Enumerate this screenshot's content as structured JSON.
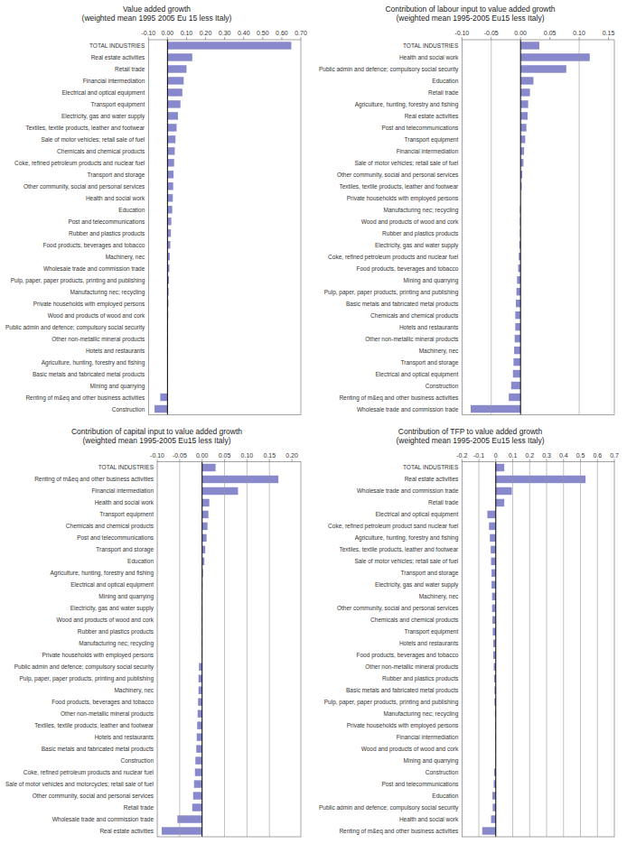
{
  "chart_data": [
    {
      "type": "bar",
      "orientation": "horizontal",
      "grid": false,
      "color": "#8888cc",
      "title": "Value added growth\n(weighted mean 1995 2005 Eu 15 less Italy)",
      "categories": [
        "TOTAL INDUSTRIES",
        "Real estate activities",
        "Retail trade",
        "Financial intermediation",
        "Electrical and optical equipment",
        "Transport equipment",
        "Electricity, gas and water supply",
        "Textiles, textile products, leather and footwear",
        "Sale of motor vehicles; retail sale of fuel",
        "Chemicals and chemical products",
        "Coke, refined petroleum products and nuclear fuel",
        "Transport and storage",
        "Other community, social and personal services",
        "Health and social work",
        "Education",
        "Post and telecommunications",
        "Rubber and plastics products",
        "Food products, beverages and tobacco",
        "Machinery, nec",
        "Wholesale trade and commission trade",
        "Pulp, paper, paper products, printing and publishing",
        "Manufacturing nec; recycling",
        "Private households with employed persons",
        "Wood and products of wood and cork",
        "Public admin and defence; compulsory social security",
        "Other non-metallic mineral products",
        "Hotels and restaurants",
        "Agriculture, hunting, forestry and fishing",
        "Basic metals and fabricated metal products",
        "Mining and quarrying",
        "Renting of m&eq and other business activities",
        "Construction"
      ],
      "values": [
        0.65,
        0.13,
        0.1,
        0.085,
        0.078,
        0.068,
        0.055,
        0.048,
        0.042,
        0.038,
        0.035,
        0.032,
        0.03,
        0.028,
        0.025,
        0.02,
        0.018,
        0.015,
        0.012,
        0.01,
        0.008,
        0.006,
        0.005,
        0.004,
        0.003,
        0.003,
        0.002,
        0.001,
        0.001,
        0.0,
        -0.038,
        -0.068
      ],
      "xlim": [
        -0.1,
        0.7
      ],
      "xticks": [
        {
          "value": -0.1,
          "label": "-0.10"
        },
        {
          "value": 0,
          "label": "0.00"
        },
        {
          "value": 0.1,
          "label": "0.10"
        },
        {
          "value": 0.2,
          "label": "0.20"
        },
        {
          "value": 0.3,
          "label": "0.30"
        },
        {
          "value": 0.4,
          "label": "0.40"
        },
        {
          "value": 0.5,
          "label": "0.50"
        },
        {
          "value": 0.6,
          "label": "0.60"
        },
        {
          "value": 0.7,
          "label": "0.70"
        }
      ],
      "reference_lines": [
        0
      ]
    },
    {
      "type": "bar",
      "orientation": "horizontal",
      "grid": false,
      "color": "#8888cc",
      "title": "Contribution of labour input to value added growth\n(weighted mean 1995-2005 Eu15 less Italy)",
      "categories": [
        "TOTAL INDUSTRIES",
        "Health and social work",
        "Public admin and defence; compulsory social security",
        "Education",
        "Retail trade",
        "Agriculture, hunting, forestry and fishing",
        "Real estate activities",
        "Post and telecommunications",
        "Transport equipment",
        "Financial intermediation",
        "Sale of motor vehicles; retail sale of fuel",
        "Other community, social and personal services",
        "Textiles, textile products, leather and footwear",
        "Private households with employed persons",
        "Manufacturing nec; recycling",
        "Wood and products of wood and cork",
        "Rubber and plastics products",
        "Electricity, gas and water supply",
        "Coke, refined petroleum products and nuclear fuel",
        "Food products, beverages and tobacco",
        "Mining and quarrying",
        "Pulp, paper, paper products, printing and publishing",
        "Basic metals and fabricated metal products",
        "Chemicals and chemical products",
        "Hotels and restaurants",
        "Other non-metallic mineral products",
        "Machinery, nec",
        "Transport and storage",
        "Electrical and optical equipment",
        "Construction",
        "Renting of m&eq and other business activities",
        "Wholesale trade and commission trade"
      ],
      "values": [
        0.032,
        0.118,
        0.078,
        0.022,
        0.016,
        0.013,
        0.012,
        0.01,
        0.008,
        0.006,
        0.005,
        0.003,
        0.002,
        0.0,
        -0.001,
        -0.001,
        -0.001,
        -0.002,
        -0.003,
        -0.004,
        -0.006,
        -0.007,
        -0.008,
        -0.009,
        -0.009,
        -0.01,
        -0.011,
        -0.012,
        -0.013,
        -0.016,
        -0.02,
        -0.085
      ],
      "xlim": [
        -0.1,
        0.16
      ],
      "xticks": [
        {
          "value": -0.1,
          "label": "-0.10"
        },
        {
          "value": -0.05,
          "label": "-0.05"
        },
        {
          "value": 0,
          "label": "0.00"
        },
        {
          "value": 0.05,
          "label": "0.05"
        },
        {
          "value": 0.1,
          "label": "0.10"
        },
        {
          "value": 0.15,
          "label": "0.15"
        }
      ],
      "reference_lines": [
        -0.05,
        0,
        0.1
      ]
    },
    {
      "type": "bar",
      "orientation": "horizontal",
      "grid": false,
      "color": "#8888cc",
      "title": "Contribution of capital input to value added growth\n(weighted mean 1995-2005 Eu15 less Italy)",
      "categories": [
        "TOTAL INDUSTRIES",
        "Renting of m&eq and other business activities",
        "Financial intermediation",
        "Health and social work",
        "Transport equipment",
        "Chemicals and chemical products",
        "Post and telecommunications",
        "Transport and storage",
        "Education",
        "Agriculture, hunting, forestry and fishing",
        "Electrical and optical equipment",
        "Mining and quarrying",
        "Electricity, gas and water supply",
        "Wood and products of wood and cork",
        "Rubber and plastics products",
        "Manufacturing nec; recycling",
        "Private households with employed persons",
        "Public admin and defence; compulsory social security",
        "Pulp, paper, paper products, printing and publishing",
        "Machinery, nec",
        "Food products, beverages and tobacco",
        "Other non-metallic mineral products",
        "Textiles, textile products, leather and footwear",
        "Hotels and restaurants",
        "Basic metals and fabricated metal products",
        "Construction",
        "Coke, refined petroleum products and nuclear fuel",
        "Sale of motor vehicles and motorcycles; retail sale of fuel",
        "Other community, social and personal services",
        "Retail trade",
        "Wholesale trade and commission trade",
        "Real estate activities"
      ],
      "values": [
        0.03,
        0.17,
        0.08,
        0.016,
        0.014,
        0.012,
        0.01,
        0.007,
        0.005,
        0.002,
        0.001,
        -0.001,
        -0.001,
        -0.001,
        -0.001,
        -0.001,
        -0.001,
        -0.007,
        -0.008,
        -0.008,
        -0.009,
        -0.01,
        -0.011,
        -0.012,
        -0.013,
        -0.015,
        -0.016,
        -0.018,
        -0.02,
        -0.022,
        -0.055,
        -0.09
      ],
      "xlim": [
        -0.1,
        0.22
      ],
      "xticks": [
        {
          "value": -0.1,
          "label": "-0.10"
        },
        {
          "value": -0.05,
          "label": "-0.05"
        },
        {
          "value": 0,
          "label": "0.00"
        },
        {
          "value": 0.05,
          "label": "0.05"
        },
        {
          "value": 0.1,
          "label": "0.10"
        },
        {
          "value": 0.15,
          "label": "0.15"
        },
        {
          "value": 0.2,
          "label": "0.20"
        }
      ],
      "reference_lines": [
        -0.05,
        0,
        0.05,
        0.1,
        0.15
      ]
    },
    {
      "type": "bar",
      "orientation": "horizontal",
      "grid": false,
      "color": "#8888cc",
      "title": "Contribution of TFP to value added growth\n(weighted mean 1995-2005 Eu15 less Italy)",
      "categories": [
        "TOTAL INDUSTRIES",
        "Real estate activities",
        "Wholesale trade and commission trade",
        "Retail trade",
        "Electrical and optical equipment",
        "Coke, refined petroleum product sand nuclear fuel",
        "Agriculture, hunting, forestry and fishing",
        "Textiles, textile products, leather and footwear",
        "Sale of motor vehicles; retail sale of fuel",
        "Transport and storage",
        "Electricity, gas and water supply",
        "Machinery, nec",
        "Other community, social and personal services",
        "Chemicals and chemical products",
        "Transport equipment",
        "Hotels and restaurants",
        "Food products, beverages and tobacco",
        "Other non-metallic mineral products",
        "Rubber and plastics products",
        "Basic metals and fabricated metal products",
        "Pulp, paper, paper products, printing and publishing",
        "Manufacturing nec; recycling",
        "Private households with employed persons",
        "Financial intermediation",
        "Wood and products of wood and cork",
        "Mining and quarrying",
        "Construction",
        "Post and telecommunications",
        "Education",
        "Public admin and defence; compulsory social security",
        "Health and social work",
        "Renting of m&eq and other business activities"
      ],
      "values": [
        0.05,
        0.53,
        0.095,
        0.05,
        -0.05,
        -0.04,
        -0.035,
        -0.03,
        -0.028,
        -0.025,
        -0.025,
        -0.022,
        -0.022,
        -0.02,
        -0.018,
        -0.015,
        -0.015,
        -0.012,
        -0.01,
        -0.008,
        -0.008,
        -0.005,
        -0.003,
        -0.003,
        -0.002,
        -0.002,
        -0.01,
        -0.012,
        -0.02,
        -0.018,
        -0.028,
        -0.08
      ],
      "xlim": [
        -0.2,
        0.7
      ],
      "xticks": [
        -0.2,
        -0.1,
        0,
        0.1,
        0.2,
        0.3,
        0.4,
        0.5,
        0.6,
        0.7
      ],
      "reference_lines": [
        -0.1,
        0,
        0.1,
        0.2,
        0.3,
        0.4,
        0.5,
        0.6
      ]
    }
  ]
}
